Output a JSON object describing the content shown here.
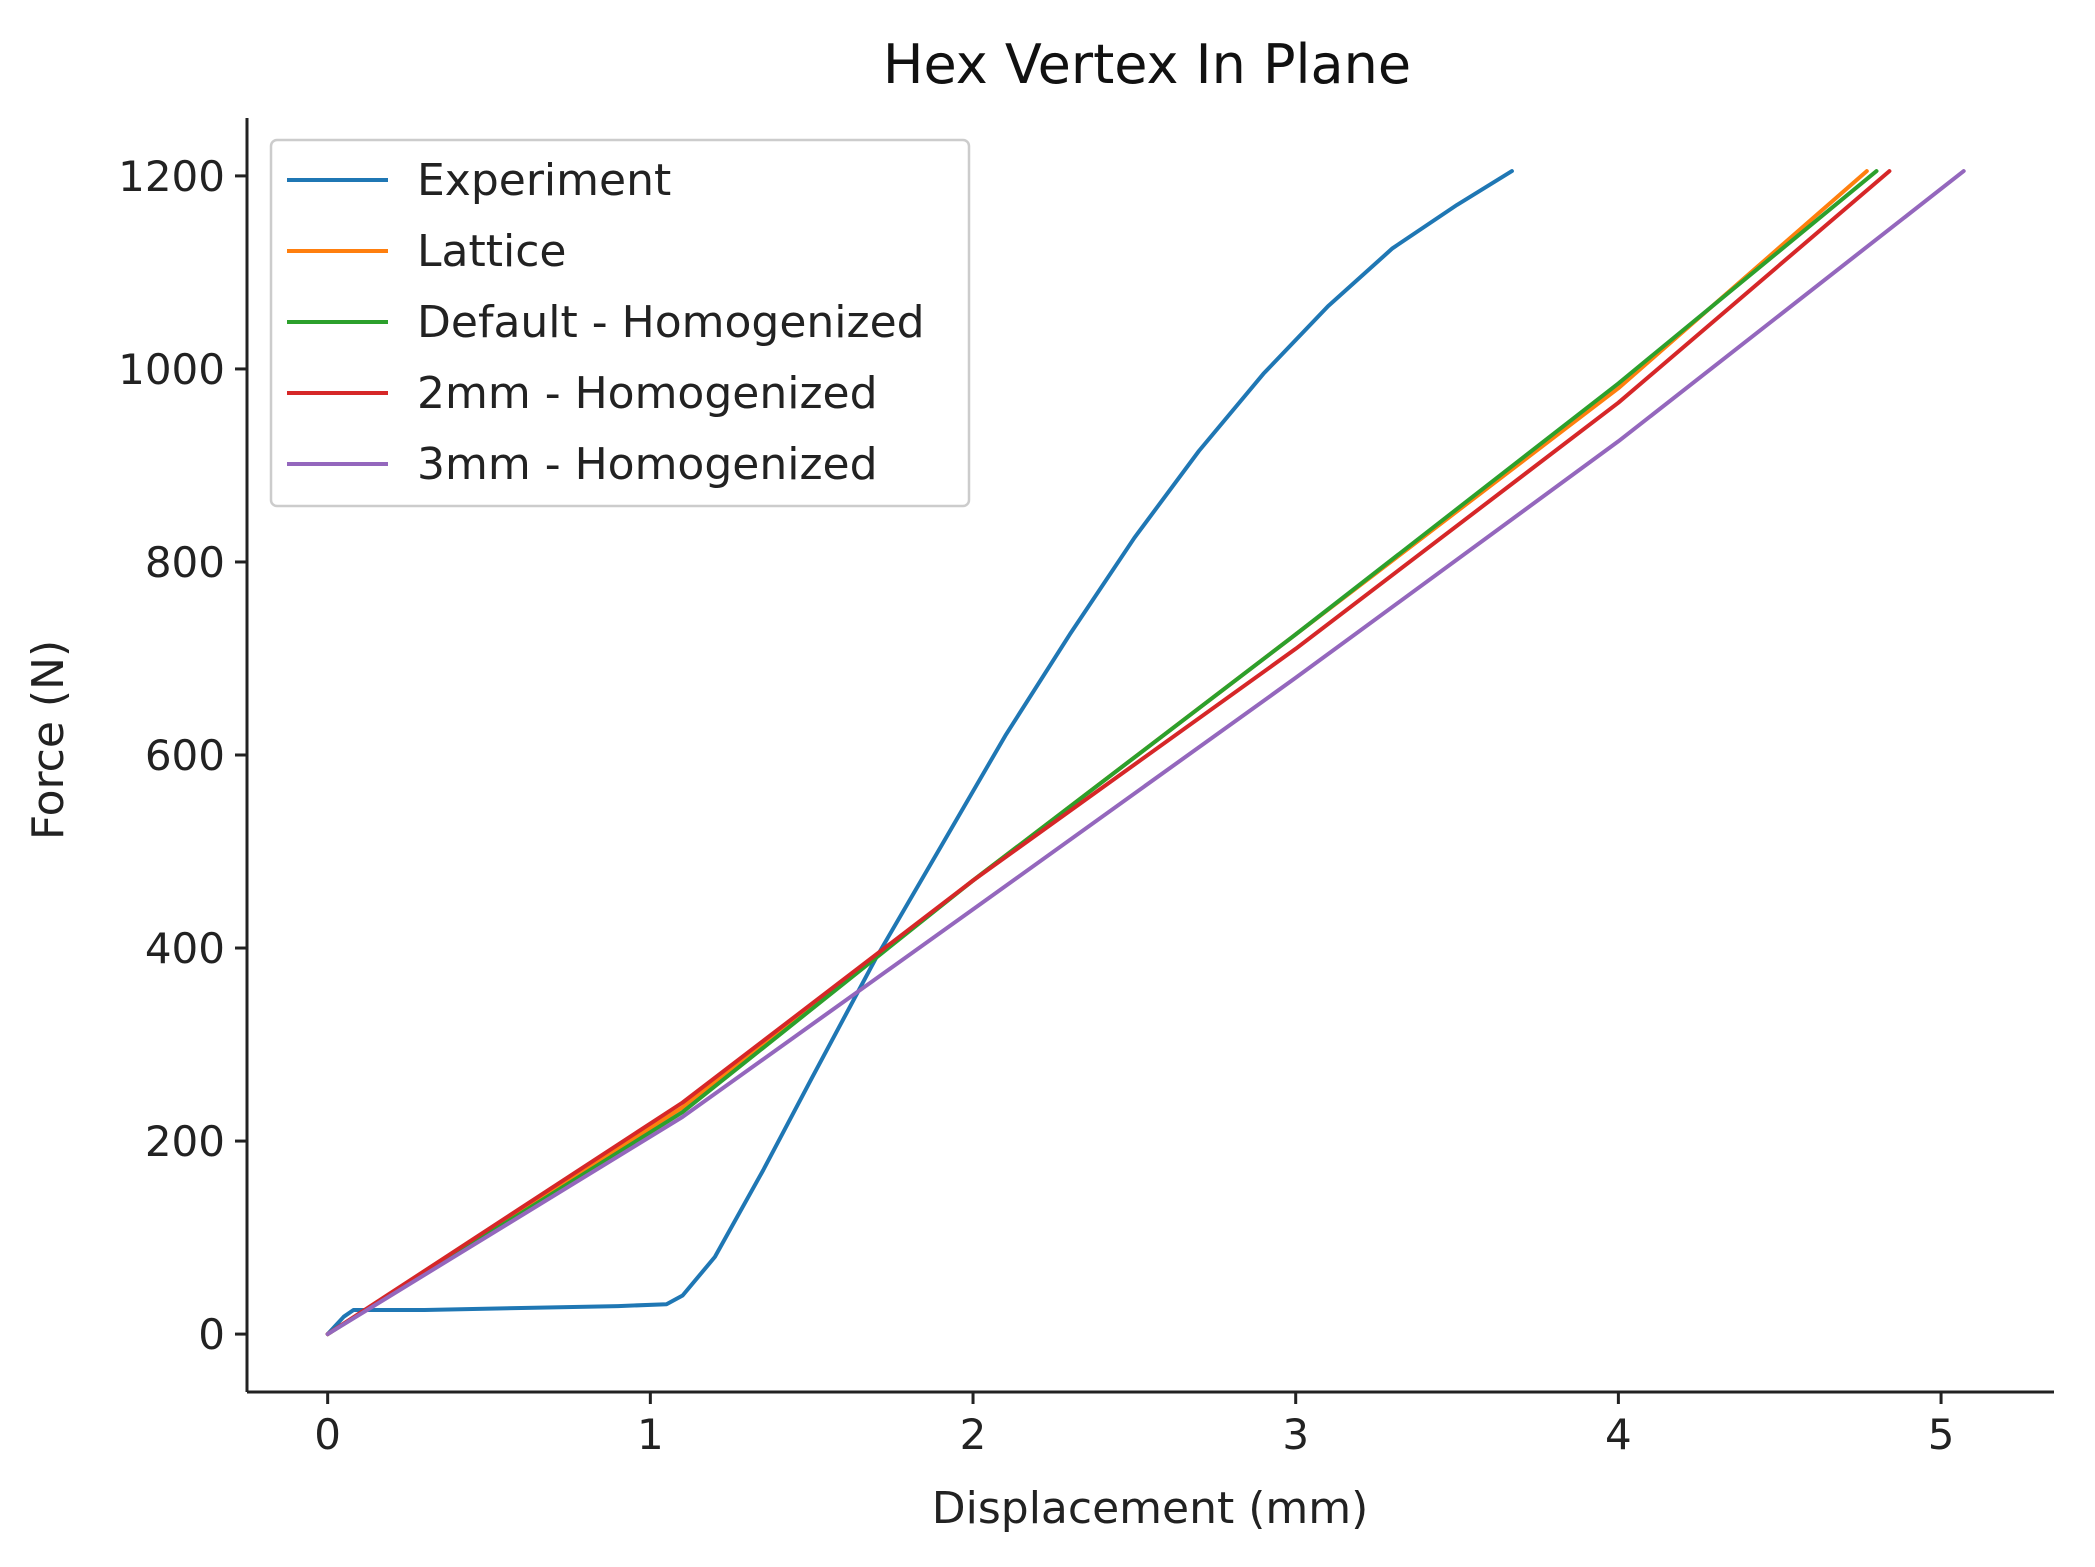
{
  "chart_data": {
    "type": "line",
    "title": "Hex Vertex In Plane",
    "xlabel": "Displacement (mm)",
    "ylabel": "Force (N)",
    "xlim": [
      -0.25,
      5.35
    ],
    "ylim": [
      -60,
      1260
    ],
    "xticks": [
      "0",
      "1",
      "2",
      "3",
      "4",
      "5"
    ],
    "yticks": [
      "0",
      "200",
      "400",
      "600",
      "800",
      "1000",
      "1200"
    ],
    "grid": false,
    "legend_position": "top-left",
    "series": [
      {
        "name": "Experiment",
        "color": "#1f77b4",
        "x": [
          0,
          0.05,
          0.08,
          0.3,
          0.6,
          0.9,
          1.05,
          1.1,
          1.2,
          1.35,
          1.5,
          1.7,
          1.9,
          2.1,
          2.3,
          2.5,
          2.7,
          2.9,
          3.1,
          3.3,
          3.5,
          3.67
        ],
        "y": [
          0,
          18,
          25,
          25,
          27,
          29,
          31,
          40,
          80,
          170,
          265,
          390,
          505,
          620,
          725,
          825,
          915,
          995,
          1065,
          1125,
          1170,
          1205
        ]
      },
      {
        "name": "Lattice",
        "color": "#ff7f0e",
        "x": [
          0,
          1.1,
          2,
          3,
          4,
          4.77
        ],
        "y": [
          0,
          235,
          470,
          725,
          980,
          1205
        ]
      },
      {
        "name": "Default - Homogenized",
        "color": "#2ca02c",
        "x": [
          0,
          1.1,
          2,
          3,
          4,
          4.8
        ],
        "y": [
          0,
          230,
          470,
          725,
          985,
          1205
        ]
      },
      {
        "name": "2mm - Homogenized",
        "color": "#d62728",
        "x": [
          0,
          1.1,
          2,
          3,
          4,
          4.84
        ],
        "y": [
          0,
          240,
          470,
          710,
          965,
          1205
        ]
      },
      {
        "name": "3mm - Homogenized",
        "color": "#9467bd",
        "x": [
          0,
          1.1,
          2,
          3,
          4,
          5.07
        ],
        "y": [
          0,
          225,
          440,
          680,
          925,
          1205
        ]
      }
    ]
  }
}
